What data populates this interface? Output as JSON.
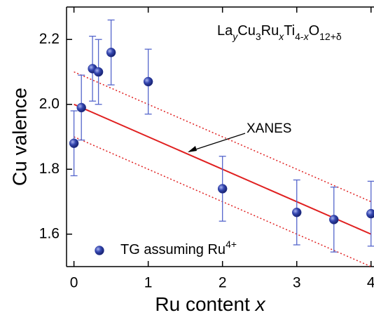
{
  "chart_data": {
    "type": "scatter",
    "formula": [
      {
        "text": "La"
      },
      {
        "text": "y",
        "sub": true,
        "italic": true
      },
      {
        "text": "Cu"
      },
      {
        "text": "3",
        "sub": true
      },
      {
        "text": "Ru"
      },
      {
        "text": "x",
        "sub": true,
        "italic": true
      },
      {
        "text": "Ti"
      },
      {
        "text": "4-",
        "sub": true
      },
      {
        "text": "x",
        "sub": true,
        "italic": true
      },
      {
        "text": "O"
      },
      {
        "text": "12+δ",
        "sub": true
      }
    ],
    "xlabel": "Ru content ",
    "xlabel_italic": "x",
    "ylabel": "Cu valence",
    "xlim": [
      -0.1,
      4.04
    ],
    "ylim": [
      1.5,
      2.3
    ],
    "xticks": [
      0,
      1,
      2,
      3,
      4
    ],
    "yticks": [
      1.6,
      1.8,
      {
        "value": 2.0,
        "label": "2.0"
      },
      2.2
    ],
    "series": [
      {
        "name": "TG assuming Ru",
        "name_superscript": "4+",
        "color": "#2b3a9e",
        "error_color": "#5566cc",
        "x": [
          0,
          0.1,
          0.25,
          0.33,
          0.5,
          1.0,
          2.0,
          3.0,
          3.5,
          4.0
        ],
        "values": [
          1.88,
          1.99,
          2.11,
          2.1,
          2.16,
          2.07,
          1.74,
          1.667,
          1.645,
          1.663
        ],
        "errors": [
          0.1,
          0.1,
          0.1,
          0.1,
          0.1,
          0.1,
          0.1,
          0.1,
          0.1,
          0.1
        ]
      }
    ],
    "lines": [
      {
        "x": [
          0,
          4
        ],
        "values": [
          2.0,
          1.6
        ],
        "color": "#e02020",
        "dashed": false
      },
      {
        "x": [
          0,
          4
        ],
        "values": [
          2.1,
          1.7
        ],
        "color": "#e02020",
        "dashed": true
      },
      {
        "x": [
          0,
          4
        ],
        "values": [
          1.9,
          1.5
        ],
        "color": "#e02020",
        "dashed": true
      }
    ],
    "annotation": "XANES"
  }
}
